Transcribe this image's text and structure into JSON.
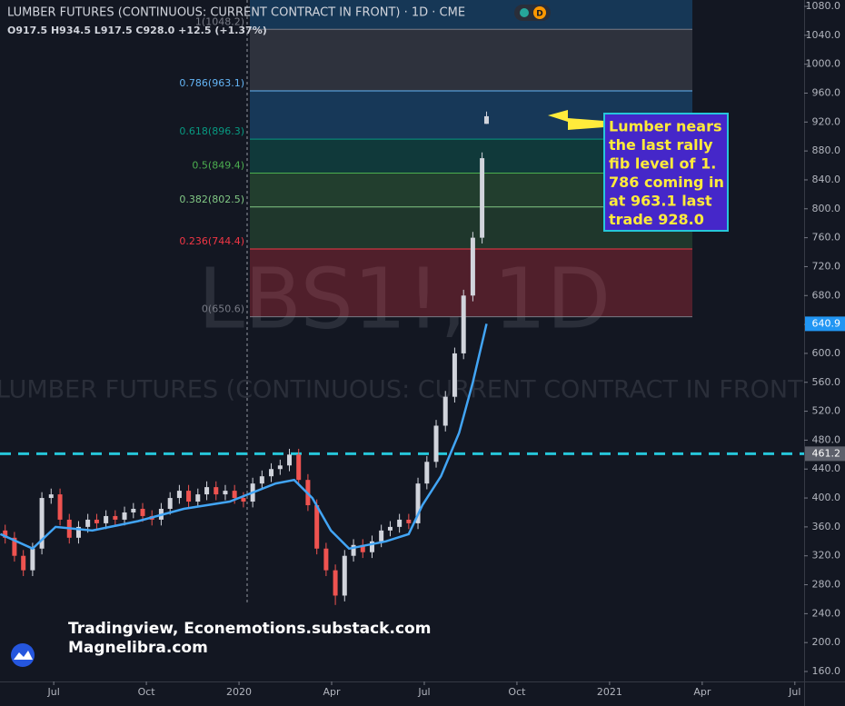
{
  "chart_data": {
    "type": "candlestick",
    "title": "LUMBER FUTURES (CONTINUOUS: CURRENT CONTRACT IN FRONT) · 1D · CME",
    "badge": "D",
    "ohlc_legend": "O917.5 H934.5 L917.5 C928.0 +12.5 (+1.37%)",
    "watermark": [
      "LBS1!, 1D",
      "LUMBER FUTURES (CONTINUOUS: CURRENT CONTRACT IN FRONT)"
    ],
    "x": [
      2019.369,
      2019.394,
      2019.418,
      2019.443,
      2019.468,
      2019.493,
      2019.517,
      2019.542,
      2019.567,
      2019.592,
      2019.616,
      2019.641,
      2019.666,
      2019.691,
      2019.715,
      2019.74,
      2019.765,
      2019.79,
      2019.814,
      2019.839,
      2019.864,
      2019.889,
      2019.913,
      2019.938,
      2019.963,
      2019.988,
      2020.012,
      2020.037,
      2020.062,
      2020.087,
      2020.111,
      2020.136,
      2020.161,
      2020.186,
      2020.21,
      2020.235,
      2020.26,
      2020.285,
      2020.309,
      2020.334,
      2020.359,
      2020.384,
      2020.408,
      2020.433,
      2020.458,
      2020.483,
      2020.507,
      2020.532,
      2020.557,
      2020.582,
      2020.606,
      2020.631,
      2020.656,
      2020.668
    ],
    "open": [
      355,
      345,
      320,
      300,
      330,
      400,
      405,
      370,
      345,
      360,
      370,
      365,
      375,
      370,
      380,
      385,
      375,
      370,
      385,
      400,
      410,
      395,
      405,
      415,
      405,
      410,
      400,
      395,
      420,
      430,
      440,
      445,
      460,
      425,
      390,
      330,
      300,
      265,
      320,
      335,
      325,
      340,
      355,
      360,
      370,
      365,
      420,
      450,
      500,
      540,
      600,
      680,
      760,
      917.5
    ],
    "high": [
      363,
      353,
      328,
      338,
      408,
      413,
      413,
      378,
      368,
      378,
      378,
      383,
      383,
      388,
      393,
      393,
      383,
      393,
      408,
      418,
      418,
      413,
      423,
      423,
      418,
      418,
      408,
      428,
      438,
      448,
      453,
      468,
      468,
      433,
      398,
      338,
      308,
      328,
      343,
      343,
      348,
      363,
      368,
      378,
      378,
      428,
      458,
      508,
      548,
      608,
      688,
      768,
      878,
      934.5
    ],
    "low": [
      337,
      312,
      292,
      292,
      322,
      392,
      362,
      337,
      337,
      352,
      357,
      357,
      362,
      362,
      372,
      367,
      362,
      362,
      377,
      392,
      387,
      387,
      397,
      397,
      397,
      392,
      387,
      387,
      412,
      422,
      432,
      437,
      417,
      382,
      322,
      292,
      252,
      257,
      312,
      317,
      317,
      332,
      347,
      352,
      357,
      357,
      412,
      442,
      492,
      532,
      592,
      672,
      752,
      917.5
    ],
    "close": [
      345,
      320,
      300,
      330,
      400,
      405,
      370,
      345,
      360,
      370,
      365,
      375,
      370,
      380,
      385,
      375,
      370,
      385,
      400,
      410,
      395,
      405,
      415,
      405,
      410,
      400,
      395,
      420,
      430,
      440,
      445,
      460,
      425,
      390,
      330,
      300,
      265,
      320,
      335,
      325,
      340,
      355,
      360,
      370,
      365,
      420,
      450,
      500,
      540,
      600,
      680,
      760,
      870,
      928
    ],
    "up_color": "#d1d4dc",
    "down_color": "#ef5350",
    "moving_average": {
      "color": "#42a5f5",
      "x": [
        2019.356,
        2019.443,
        2019.505,
        2019.604,
        2019.728,
        2019.851,
        2019.975,
        2020.099,
        2020.149,
        2020.198,
        2020.248,
        2020.297,
        2020.396,
        2020.458,
        2020.495,
        2020.545,
        2020.594,
        2020.631,
        2020.668
      ],
      "values": [
        350,
        330,
        360,
        355,
        368,
        385,
        395,
        420,
        425,
        400,
        355,
        330,
        340,
        350,
        390,
        430,
        490,
        560,
        640.9
      ]
    },
    "fib_levels": [
      {
        "label": "0(650.6)",
        "value": 650.6,
        "color": "#787b86"
      },
      {
        "label": "0.236(744.4)",
        "value": 744.4,
        "color": "#f23645"
      },
      {
        "label": "0.382(802.5)",
        "value": 802.5,
        "color": "#81c784"
      },
      {
        "label": "0.5(849.4)",
        "value": 849.4,
        "color": "#4caf50"
      },
      {
        "label": "0.618(896.3)",
        "value": 896.3,
        "color": "#089981"
      },
      {
        "label": "0.786(963.1)",
        "value": 963.1,
        "color": "#64b5f6"
      },
      {
        "label": "1(1048.2)",
        "value": 1048.2,
        "color": "#787b86"
      }
    ],
    "hline": {
      "value": 461.2,
      "color": "#26c6da"
    },
    "ma_marker": {
      "value": 640.9,
      "color": "#2196f3"
    },
    "annotation": [
      "Lumber nears",
      "the last rally",
      "fib level of 1.",
      "786 coming in",
      "at 963.1 last",
      "trade 928.0"
    ],
    "credits": [
      "Tradingview, Econemotions.substack.com",
      "Magnelibra.com"
    ],
    "xlim": [
      2019.355,
      2021.525
    ],
    "xticks": [
      {
        "value": 2019.5,
        "label": "Jul"
      },
      {
        "value": 2019.75,
        "label": "Oct"
      },
      2020,
      {
        "value": 2020.25,
        "label": "Apr"
      },
      {
        "value": 2020.5,
        "label": "Jul"
      },
      {
        "value": 2020.75,
        "label": "Oct"
      },
      2021,
      {
        "value": 2021.25,
        "label": "Apr"
      },
      {
        "value": 2021.5,
        "label": "Jul"
      }
    ],
    "ylim": [
      146.2,
      1088.8
    ],
    "yticks": [
      {
        "value": 160,
        "label": "160.0"
      },
      {
        "value": 200,
        "label": "200.0"
      },
      {
        "value": 240,
        "label": "240.0"
      },
      {
        "value": 280,
        "label": "280.0"
      },
      {
        "value": 320,
        "label": "320.0"
      },
      {
        "value": 360,
        "label": "360.0"
      },
      {
        "value": 400,
        "label": "400.0"
      },
      {
        "value": 440,
        "label": "440.0"
      },
      {
        "value": 480,
        "label": "480.0"
      },
      {
        "value": 520,
        "label": "520.0"
      },
      {
        "value": 560,
        "label": "560.0"
      },
      {
        "value": 600,
        "label": "600.0"
      },
      {
        "value": 640,
        "label": "640.0"
      },
      {
        "value": 680,
        "label": "680.0"
      },
      {
        "value": 720,
        "label": "720.0"
      },
      {
        "value": 760,
        "label": "760.0"
      },
      {
        "value": 800,
        "label": "800.0"
      },
      {
        "value": 840,
        "label": "840.0"
      },
      {
        "value": 880,
        "label": "880.0"
      },
      {
        "value": 920,
        "label": "920.0"
      },
      {
        "value": 960,
        "label": "960.0"
      },
      {
        "value": 1000,
        "label": "1000.0"
      },
      {
        "value": 1040,
        "label": "1040.0"
      },
      {
        "value": 1080,
        "label": "1080.0"
      }
    ]
  }
}
